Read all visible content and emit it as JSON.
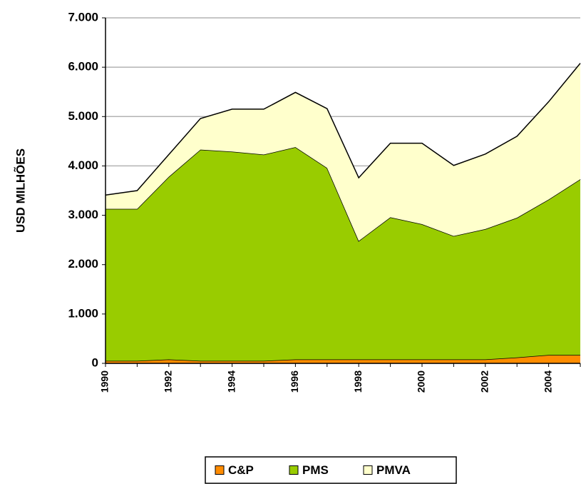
{
  "chart_data": {
    "type": "stacked_area",
    "y_label": "USD MILHÕES",
    "x": [
      1990,
      1991,
      1992,
      1993,
      1994,
      1995,
      1996,
      1997,
      1998,
      1999,
      2000,
      2001,
      2002,
      2003,
      2004,
      2005
    ],
    "xlim": [
      1990,
      2005
    ],
    "xticks": [
      1990,
      1992,
      1994,
      1996,
      1998,
      2000,
      2002,
      2004
    ],
    "ylim": [
      0,
      7000
    ],
    "yticks": [
      {
        "value": 0,
        "label": "0"
      },
      {
        "value": 1000,
        "label": "1.000"
      },
      {
        "value": 2000,
        "label": "2.000"
      },
      {
        "value": 3000,
        "label": "3.000"
      },
      {
        "value": 4000,
        "label": "4.000"
      },
      {
        "value": 5000,
        "label": "5.000"
      },
      {
        "value": 6000,
        "label": "6.000"
      },
      {
        "value": 7000,
        "label": "7.000"
      }
    ],
    "grid": true,
    "legend": "bottom",
    "series": [
      {
        "name": "C&P",
        "color": "#ff8c00",
        "values": [
          50,
          50,
          80,
          50,
          50,
          50,
          80,
          80,
          80,
          80,
          80,
          80,
          80,
          120,
          170,
          170
        ]
      },
      {
        "name": "PMS",
        "color": "#99cc00",
        "values": [
          3080,
          3080,
          3700,
          4280,
          4240,
          4180,
          4300,
          3880,
          2400,
          2880,
          2740,
          2500,
          2640,
          2830,
          3150,
          3560
        ]
      },
      {
        "name": "PMVA",
        "color": "#ffffcc",
        "values": [
          280,
          370,
          450,
          630,
          860,
          920,
          1110,
          1200,
          1280,
          1500,
          1640,
          1430,
          1520,
          1650,
          1980,
          2350
        ]
      }
    ]
  }
}
